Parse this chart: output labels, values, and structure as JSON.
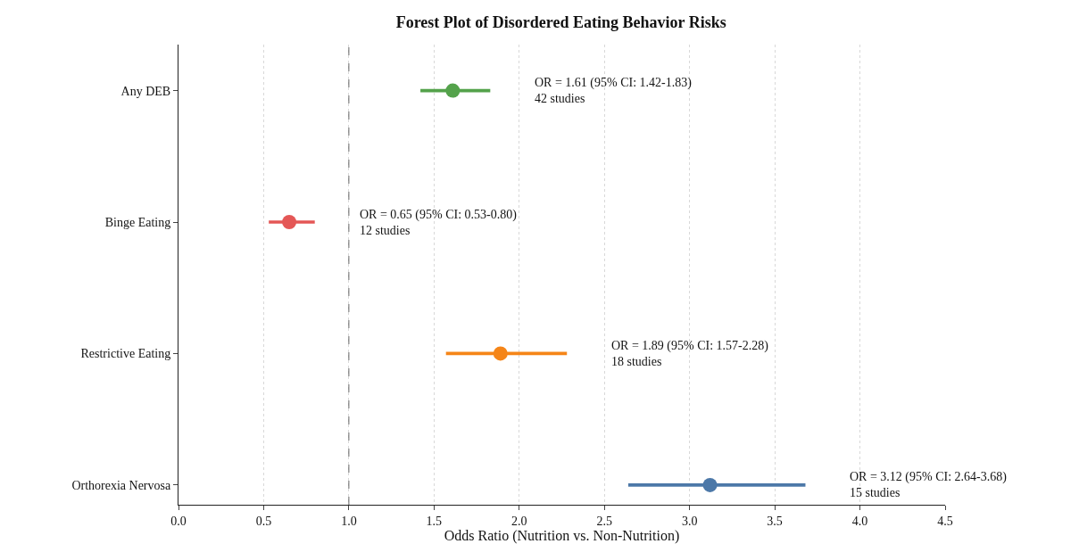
{
  "chart_data": {
    "type": "scatter",
    "orientation": "horizontal",
    "title": "Forest Plot of Disordered Eating Behavior Risks",
    "xlabel": "Odds Ratio (Nutrition vs. Non-Nutrition)",
    "categories": [
      "Any DEB",
      "Binge Eating",
      "Restrictive Eating",
      "Orthorexia Nervosa"
    ],
    "series": [
      {
        "type": "bar",
        "base": [
          1.42,
          0.53,
          1.57,
          2.64
        ],
        "values": [
          0.41,
          0.27,
          0.71,
          1.04
        ],
        "colors": [
          "#54a24b",
          "#e45756",
          "#f58518",
          "#4c78a8"
        ]
      },
      {
        "values": [
          1.61,
          0.65,
          1.89,
          3.12
        ],
        "colors": [
          "#54a24b",
          "#e45756",
          "#f58518",
          "#4c78a8"
        ]
      }
    ],
    "xlim": [
      0,
      4.5
    ],
    "xticks": [
      {
        "value": 0,
        "label": "0.0"
      },
      {
        "value": 0.5,
        "label": "0.5"
      },
      {
        "value": 1,
        "label": "1.0"
      },
      {
        "value": 1.5,
        "label": "1.5"
      },
      {
        "value": 2,
        "label": "2.0"
      },
      {
        "value": 2.5,
        "label": "2.5"
      },
      {
        "value": 3,
        "label": "3.0"
      },
      {
        "value": 3.5,
        "label": "3.5"
      },
      {
        "value": 4,
        "label": "4.0"
      },
      {
        "value": 4.5,
        "label": "4.5"
      }
    ],
    "ref_lines": [
      {
        "axis": "x",
        "value": 1.0,
        "color": "#666666",
        "line_style": "dashed"
      }
    ],
    "annotations": [
      "OR = 1.61 (95% CI: 1.42-1.83)\n42 studies",
      "OR = 0.65 (95% CI: 0.53-0.80)\n12 studies",
      "OR = 1.89 (95% CI: 1.57-2.28)\n18 studies",
      "OR = 3.12 (95% CI: 2.64-3.68)\n15 studies"
    ],
    "grid": "x",
    "marker": "circle"
  }
}
